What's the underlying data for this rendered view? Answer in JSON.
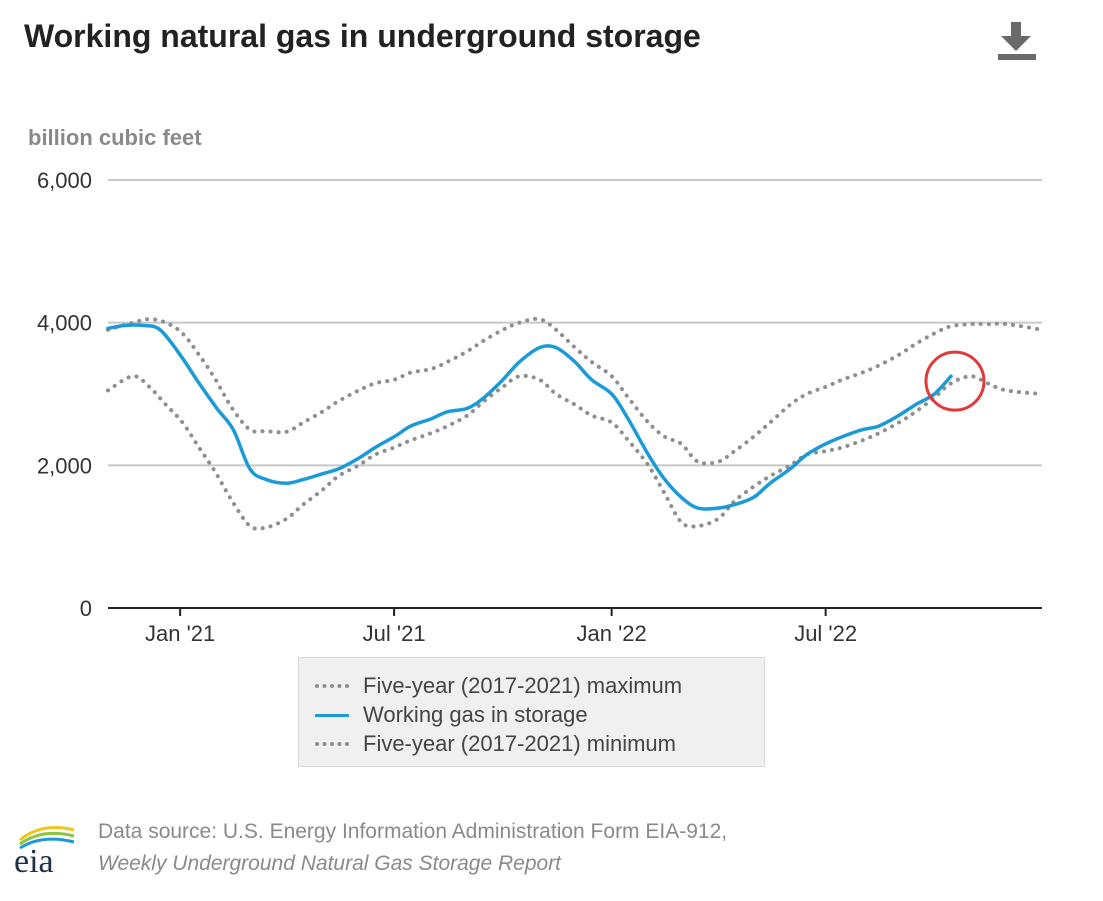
{
  "header": {
    "title": "Working natural gas in underground storage",
    "download_icon": "download-icon"
  },
  "units_label": "billion cubic feet",
  "colors": {
    "working_gas": "#1a9ad6",
    "five_year_band": "#8f8f8f",
    "highlight_circle": "#e03b3b",
    "gridline": "#c8c8c8",
    "axis": "#222222"
  },
  "legend": {
    "items": [
      {
        "label": "Five-year (2017-2021) maximum",
        "style": "dotted"
      },
      {
        "label": "Working gas in storage",
        "style": "solid"
      },
      {
        "label": "Five-year (2017-2021) minimum",
        "style": "dotted"
      }
    ]
  },
  "source": {
    "line1": "Data source: U.S. Energy Information Administration Form EIA-912,",
    "line2": "Weekly Underground Natural Gas Storage Report",
    "logo_text": "eia"
  },
  "chart_data": {
    "type": "line",
    "title": "Working natural gas in underground storage",
    "ylabel": "billion cubic feet",
    "ylim": [
      0,
      6000
    ],
    "yticks": [
      0,
      2000,
      4000,
      6000
    ],
    "ytick_labels": [
      "0",
      "2,000",
      "4,000",
      "6,000"
    ],
    "xlim": [
      "2020-11-01",
      "2022-12-31"
    ],
    "xticks": [
      "2021-01-01",
      "2021-07-01",
      "2022-01-01",
      "2022-07-01"
    ],
    "xtick_labels": [
      "Jan '21",
      "Jul '21",
      "Jan '22",
      "Jul '22"
    ],
    "grid": true,
    "legend_position": "bottom",
    "annotation": "red circle around the latest working gas value (Oct 2022)",
    "series": [
      {
        "name": "Five-year (2017-2021) maximum",
        "style": "dotted",
        "x": [
          "2020-11-01",
          "2020-11-22",
          "2020-12-06",
          "2020-12-20",
          "2021-01-03",
          "2021-01-17",
          "2021-01-31",
          "2021-02-14",
          "2021-03-01",
          "2021-03-15",
          "2021-04-01",
          "2021-04-15",
          "2021-05-01",
          "2021-05-15",
          "2021-06-01",
          "2021-06-15",
          "2021-07-01",
          "2021-07-15",
          "2021-08-01",
          "2021-08-15",
          "2021-09-01",
          "2021-09-15",
          "2021-10-01",
          "2021-10-15",
          "2021-11-01",
          "2021-11-15",
          "2021-12-01",
          "2021-12-15",
          "2022-01-01",
          "2022-01-15",
          "2022-02-01",
          "2022-02-15",
          "2022-03-01",
          "2022-03-15",
          "2022-04-01",
          "2022-04-15",
          "2022-05-01",
          "2022-05-15",
          "2022-06-01",
          "2022-06-15",
          "2022-07-01",
          "2022-07-15",
          "2022-08-01",
          "2022-08-15",
          "2022-09-01",
          "2022-09-15",
          "2022-10-01",
          "2022-10-15",
          "2022-11-01",
          "2022-11-15",
          "2022-12-01",
          "2022-12-31"
        ],
        "values": [
          3900,
          4000,
          4050,
          4000,
          3850,
          3550,
          3200,
          2800,
          2500,
          2480,
          2470,
          2600,
          2750,
          2900,
          3050,
          3150,
          3200,
          3300,
          3350,
          3450,
          3600,
          3750,
          3900,
          4000,
          4050,
          3900,
          3650,
          3450,
          3250,
          2950,
          2600,
          2400,
          2300,
          2050,
          2050,
          2200,
          2400,
          2600,
          2850,
          3000,
          3100,
          3200,
          3300,
          3400,
          3550,
          3700,
          3850,
          3950,
          3980,
          3980,
          3980,
          3900
        ]
      },
      {
        "name": "Working gas in storage",
        "style": "solid",
        "x": [
          "2020-11-01",
          "2020-11-15",
          "2020-12-01",
          "2020-12-15",
          "2021-01-01",
          "2021-01-15",
          "2021-02-01",
          "2021-02-15",
          "2021-03-01",
          "2021-03-15",
          "2021-04-01",
          "2021-04-15",
          "2021-05-01",
          "2021-05-15",
          "2021-06-01",
          "2021-06-15",
          "2021-07-01",
          "2021-07-15",
          "2021-08-01",
          "2021-08-15",
          "2021-09-01",
          "2021-09-15",
          "2021-10-01",
          "2021-10-15",
          "2021-11-01",
          "2021-11-15",
          "2021-12-01",
          "2021-12-15",
          "2022-01-01",
          "2022-01-15",
          "2022-02-01",
          "2022-02-15",
          "2022-03-01",
          "2022-03-15",
          "2022-04-01",
          "2022-04-15",
          "2022-05-01",
          "2022-05-15",
          "2022-06-01",
          "2022-06-15",
          "2022-07-01",
          "2022-07-15",
          "2022-08-01",
          "2022-08-15",
          "2022-09-01",
          "2022-09-15",
          "2022-10-01",
          "2022-10-15"
        ],
        "values": [
          3920,
          3960,
          3960,
          3900,
          3550,
          3200,
          2800,
          2500,
          1950,
          1800,
          1750,
          1800,
          1880,
          1950,
          2100,
          2250,
          2400,
          2550,
          2650,
          2750,
          2800,
          2950,
          3200,
          3450,
          3650,
          3650,
          3450,
          3200,
          3000,
          2650,
          2150,
          1800,
          1550,
          1400,
          1400,
          1450,
          1550,
          1750,
          1950,
          2150,
          2300,
          2400,
          2500,
          2550,
          2700,
          2850,
          3000,
          3250
        ]
      },
      {
        "name": "Five-year (2017-2021) minimum",
        "style": "dotted",
        "x": [
          "2020-11-01",
          "2020-11-22",
          "2020-12-06",
          "2020-12-20",
          "2021-01-03",
          "2021-01-17",
          "2021-01-31",
          "2021-02-14",
          "2021-03-01",
          "2021-03-15",
          "2021-04-01",
          "2021-04-15",
          "2021-05-01",
          "2021-05-15",
          "2021-06-01",
          "2021-06-15",
          "2021-07-01",
          "2021-07-15",
          "2021-08-01",
          "2021-08-15",
          "2021-09-01",
          "2021-09-15",
          "2021-10-01",
          "2021-10-15",
          "2021-11-01",
          "2021-11-15",
          "2021-12-01",
          "2021-12-15",
          "2022-01-01",
          "2022-01-15",
          "2022-02-01",
          "2022-02-15",
          "2022-03-01",
          "2022-03-15",
          "2022-04-01",
          "2022-04-15",
          "2022-05-01",
          "2022-05-15",
          "2022-06-01",
          "2022-06-15",
          "2022-07-01",
          "2022-07-15",
          "2022-08-01",
          "2022-08-15",
          "2022-09-01",
          "2022-09-15",
          "2022-10-01",
          "2022-10-15",
          "2022-11-01",
          "2022-11-15",
          "2022-12-01",
          "2022-12-31"
        ],
        "values": [
          3050,
          3250,
          3100,
          2850,
          2600,
          2250,
          1900,
          1500,
          1150,
          1130,
          1250,
          1450,
          1650,
          1850,
          2000,
          2150,
          2250,
          2350,
          2450,
          2550,
          2700,
          2900,
          3100,
          3250,
          3200,
          3000,
          2850,
          2700,
          2600,
          2350,
          2000,
          1600,
          1200,
          1150,
          1250,
          1500,
          1700,
          1850,
          2000,
          2150,
          2200,
          2250,
          2350,
          2450,
          2600,
          2750,
          2950,
          3150,
          3250,
          3150,
          3050,
          3000
        ]
      }
    ]
  }
}
